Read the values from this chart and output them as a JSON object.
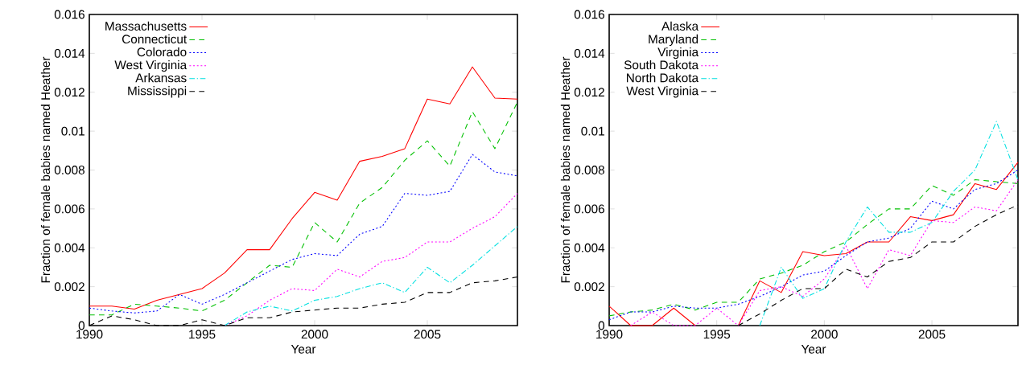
{
  "chart_data": [
    {
      "type": "line",
      "xlabel": "Year",
      "ylabel": "Fraction of female babies named Heather",
      "x": [
        1990,
        1991,
        1992,
        1993,
        1994,
        1995,
        1996,
        1997,
        1998,
        1999,
        2000,
        2001,
        2002,
        2003,
        2004,
        2005,
        2006,
        2007,
        2008,
        2009
      ],
      "xlim": [
        1990,
        2009
      ],
      "ylim": [
        0,
        0.016
      ],
      "xticks": [
        1990,
        1995,
        2000,
        2005
      ],
      "yticks": [
        0,
        0.002,
        0.004,
        0.006,
        0.008,
        0.01,
        0.012,
        0.014,
        0.016
      ],
      "legend": "top left",
      "grid": false,
      "marker": "none",
      "series": [
        {
          "name": "Massachusetts",
          "color": "#ff0000",
          "line_style": "solid",
          "values": [
            0.001,
            0.001,
            0.00085,
            0.0013,
            0.0016,
            0.0019,
            0.0027,
            0.0039,
            0.0039,
            0.0055,
            0.00685,
            0.00645,
            0.00845,
            0.0087,
            0.0091,
            0.01165,
            0.0114,
            0.0133,
            0.0117,
            0.01165
          ]
        },
        {
          "name": "Connecticut",
          "color": "#00c000",
          "line_style": "dashed",
          "values": [
            0.00055,
            0.00055,
            0.0011,
            0.001,
            0.0009,
            0.00075,
            0.0013,
            0.0022,
            0.0031,
            0.003,
            0.0053,
            0.0043,
            0.0063,
            0.0071,
            0.0085,
            0.0095,
            0.0082,
            0.011,
            0.0091,
            0.0115
          ]
        },
        {
          "name": "Colorado",
          "color": "#0000ff",
          "line_style": "dotted",
          "values": [
            0.0009,
            0.00075,
            0.00065,
            0.00075,
            0.0016,
            0.0011,
            0.0016,
            0.0022,
            0.0028,
            0.0034,
            0.0037,
            0.0036,
            0.0047,
            0.0051,
            0.0068,
            0.0067,
            0.0069,
            0.0088,
            0.0079,
            0.0077
          ]
        },
        {
          "name": "West Virginia",
          "color": "#ff00ff",
          "line_style": "dotted",
          "values": [
            null,
            null,
            null,
            null,
            null,
            null,
            0,
            0.0005,
            0.0013,
            0.0019,
            0.0018,
            0.0029,
            0.0025,
            0.0033,
            0.0035,
            0.0043,
            0.0043,
            0.005,
            0.0056,
            0.0068
          ]
        },
        {
          "name": "Arkansas",
          "color": "#00e0e0",
          "line_style": "dashdot",
          "values": [
            null,
            null,
            null,
            null,
            null,
            null,
            0,
            0.0007,
            0.001,
            0.00075,
            0.0013,
            0.0015,
            0.0019,
            0.0022,
            0.0017,
            0.003,
            0.0022,
            0.0031,
            0.0041,
            0.0051
          ]
        },
        {
          "name": "Mississippi",
          "color": "#000000",
          "line_style": "dashed",
          "values": [
            0,
            0.0005,
            0.0003,
            0,
            0,
            0.0003,
            0,
            0.0004,
            0.0004,
            0.0007,
            0.0008,
            0.0009,
            0.0009,
            0.0011,
            0.0012,
            0.0017,
            0.0017,
            0.0022,
            0.0023,
            0.0025
          ]
        }
      ]
    },
    {
      "type": "line",
      "xlabel": "Year",
      "ylabel": "Fraction of female babies named Heather",
      "x": [
        1990,
        1991,
        1992,
        1993,
        1994,
        1995,
        1996,
        1997,
        1998,
        1999,
        2000,
        2001,
        2002,
        2003,
        2004,
        2005,
        2006,
        2007,
        2008,
        2009
      ],
      "xlim": [
        1990,
        2009
      ],
      "ylim": [
        0,
        0.016
      ],
      "xticks": [
        1990,
        1995,
        2000,
        2005
      ],
      "yticks": [
        0,
        0.002,
        0.004,
        0.006,
        0.008,
        0.01,
        0.012,
        0.014,
        0.016
      ],
      "legend": "top left",
      "grid": false,
      "marker": "none",
      "series": [
        {
          "name": "Alaska",
          "color": "#ff0000",
          "line_style": "solid",
          "values": [
            0.001,
            0,
            0,
            0.0009,
            0,
            null,
            0,
            0.0023,
            0.0017,
            0.0038,
            0.0036,
            0.0037,
            0.0043,
            0.0043,
            0.0056,
            0.0054,
            0.0057,
            0.0073,
            0.007,
            0.0084
          ]
        },
        {
          "name": "Maryland",
          "color": "#00c000",
          "line_style": "dashed",
          "values": [
            0.0005,
            0.0007,
            0.0008,
            0.0011,
            0.0008,
            0.0012,
            0.0012,
            0.0024,
            0.0027,
            0.0031,
            0.0038,
            0.0043,
            0.0052,
            0.006,
            0.006,
            0.0072,
            0.0067,
            0.0075,
            0.0074,
            0.0073
          ]
        },
        {
          "name": "Virginia",
          "color": "#0000ff",
          "line_style": "dotted",
          "values": [
            0.0003,
            0.0007,
            0.0007,
            0.001,
            0.0009,
            0.0009,
            0.0011,
            0.0015,
            0.002,
            0.0026,
            0.0028,
            0.0036,
            0.0043,
            0.0045,
            0.005,
            0.0064,
            0.006,
            0.007,
            0.0073,
            0.008
          ]
        },
        {
          "name": "South Dakota",
          "color": "#ff00ff",
          "line_style": "dotted",
          "values": [
            null,
            0,
            0.0007,
            0,
            0,
            0.0009,
            0,
            0.0018,
            0.002,
            0.0015,
            0.0024,
            0.0041,
            0.0019,
            0.0039,
            0.0036,
            0.0054,
            0.0053,
            0.0061,
            0.0059,
            0.0075
          ]
        },
        {
          "name": "North Dakota",
          "color": "#00e0e0",
          "line_style": "dashdot",
          "values": [
            null,
            null,
            null,
            null,
            null,
            null,
            null,
            0,
            0.003,
            0.0014,
            0.0019,
            0.0043,
            0.0061,
            0.0048,
            0.0048,
            0.0053,
            0.0069,
            0.008,
            0.0105,
            0.0075
          ]
        },
        {
          "name": "West Virginia",
          "color": "#000000",
          "line_style": "dashed",
          "values": [
            null,
            null,
            null,
            null,
            null,
            null,
            0,
            0.0006,
            0.0013,
            0.0019,
            0.0019,
            0.0029,
            0.0025,
            0.0033,
            0.0035,
            0.0043,
            0.0043,
            0.0051,
            0.0057,
            0.0062
          ]
        }
      ]
    }
  ]
}
